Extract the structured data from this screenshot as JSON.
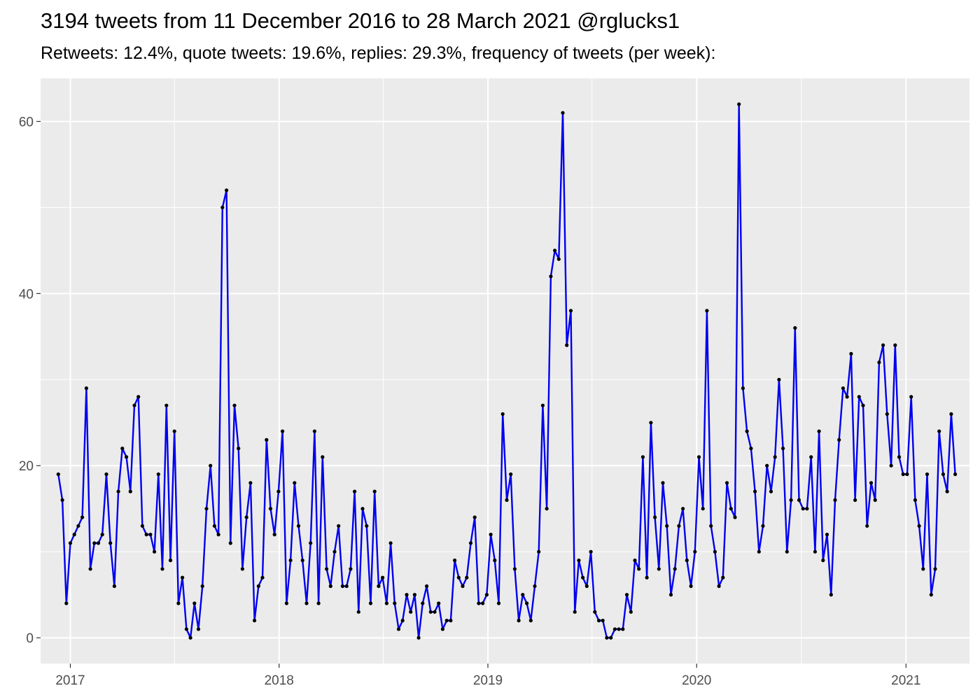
{
  "title": "3194 tweets from 11 December 2016 to 28 March 2021 @rglucks1",
  "subtitle": "Retweets: 12.4%, quote tweets: 19.6%, replies: 29.3%, frequency of tweets (per week):",
  "chart_data": {
    "type": "line",
    "x_axis_type": "date",
    "x_ticks": [
      "2017",
      "2018",
      "2019",
      "2020",
      "2021"
    ],
    "y_ticks": [
      0,
      20,
      40,
      60
    ],
    "ylim": [
      -3,
      65
    ],
    "xlim": [
      "2016-11-10",
      "2021-04-22"
    ],
    "grid": true,
    "legend": "none",
    "line_color": "#0000ee",
    "point_color": "#000000",
    "background": "#ebebeb",
    "series": [
      {
        "start": "2016-12-11",
        "interval_days": 7,
        "values": [
          19,
          16,
          4,
          11,
          12,
          13,
          14,
          29,
          8,
          11,
          11,
          12,
          19,
          11,
          6,
          17,
          22,
          21,
          17,
          27,
          28,
          13,
          12,
          12,
          10,
          19,
          8,
          27,
          9,
          24,
          4,
          7,
          1,
          0,
          4,
          1,
          6,
          15,
          20,
          13,
          12,
          50,
          52,
          11,
          27,
          22,
          8,
          14,
          18,
          2,
          6,
          7,
          23,
          15,
          12,
          17,
          24,
          4,
          9,
          18,
          13,
          9,
          4,
          11,
          24,
          4,
          21,
          8,
          6,
          10,
          13,
          6,
          6,
          8,
          17,
          3,
          15,
          13,
          4,
          17,
          6,
          7,
          4,
          11,
          4,
          1,
          2,
          5,
          3,
          5,
          0,
          4,
          6,
          3,
          3,
          4,
          1,
          2,
          2,
          9,
          7,
          6,
          7,
          11,
          14,
          4,
          4,
          5,
          12,
          9,
          4,
          26,
          16,
          19,
          8,
          2,
          5,
          4,
          2,
          6,
          10,
          27,
          15,
          42,
          45,
          44,
          61,
          34,
          38,
          3,
          9,
          7,
          6,
          10,
          3,
          2,
          2,
          0,
          0,
          1,
          1,
          1,
          5,
          3,
          9,
          8,
          21,
          7,
          25,
          14,
          8,
          18,
          13,
          5,
          8,
          13,
          15,
          9,
          6,
          10,
          21,
          15,
          38,
          13,
          10,
          6,
          7,
          18,
          15,
          14,
          62,
          29,
          24,
          22,
          17,
          10,
          13,
          20,
          17,
          21,
          30,
          22,
          10,
          16,
          36,
          16,
          15,
          15,
          21,
          10,
          24,
          9,
          12,
          5,
          16,
          23,
          29,
          28,
          33,
          16,
          28,
          27,
          13,
          18,
          16,
          32,
          34,
          26,
          20,
          34,
          21,
          19,
          19,
          28,
          16,
          13,
          8,
          19,
          5,
          8,
          24,
          19,
          17,
          26,
          19
        ]
      }
    ]
  }
}
